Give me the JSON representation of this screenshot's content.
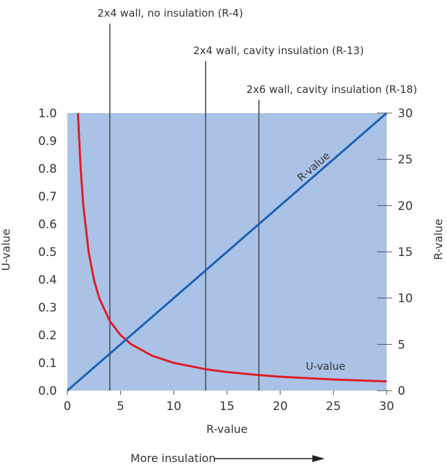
{
  "chart_data": {
    "type": "line",
    "x_range": [
      0,
      30
    ],
    "ylim_left": [
      0,
      1
    ],
    "ylim_right": [
      0,
      30
    ],
    "x_ticks": [
      0,
      5,
      10,
      15,
      20,
      25,
      30
    ],
    "y_left_ticks": [
      "0.0",
      "0.1",
      "0.2",
      "0.3",
      "0.4",
      "0.5",
      "0.6",
      "0.7",
      "0.8",
      "0.9",
      "1.0"
    ],
    "y_right_ticks": [
      "0",
      "5",
      "10",
      "15",
      "20",
      "25",
      "30"
    ],
    "xlabel": "R-value",
    "ylabel_left": "U-value",
    "ylabel_right": "R-value",
    "footer_label": "More insulation",
    "series": [
      {
        "name": "R-value",
        "axis": "right",
        "color": "#1a5fb4",
        "x": [
          0,
          30
        ],
        "y": [
          0,
          30
        ]
      },
      {
        "name": "U-value",
        "axis": "left",
        "color": "#e01b24",
        "x": [
          1,
          1.25,
          1.5,
          2,
          2.5,
          3,
          4,
          5,
          6,
          8,
          10,
          13,
          15,
          18,
          20,
          25,
          30
        ],
        "y": [
          1.0,
          0.8,
          0.667,
          0.5,
          0.4,
          0.333,
          0.25,
          0.2,
          0.167,
          0.125,
          0.1,
          0.077,
          0.067,
          0.056,
          0.05,
          0.04,
          0.033
        ]
      }
    ],
    "markers": [
      {
        "x": 4,
        "label": "2x4 wall, no insulation (R-4)"
      },
      {
        "x": 13,
        "label": "2x4 wall, cavity insulation (R-13)"
      },
      {
        "x": 18,
        "label": "2x6 wall, cavity insulation (R-18)"
      }
    ],
    "colors": {
      "plot_background": "#a9c2e6",
      "marker_line": "#4a4a4a"
    }
  }
}
